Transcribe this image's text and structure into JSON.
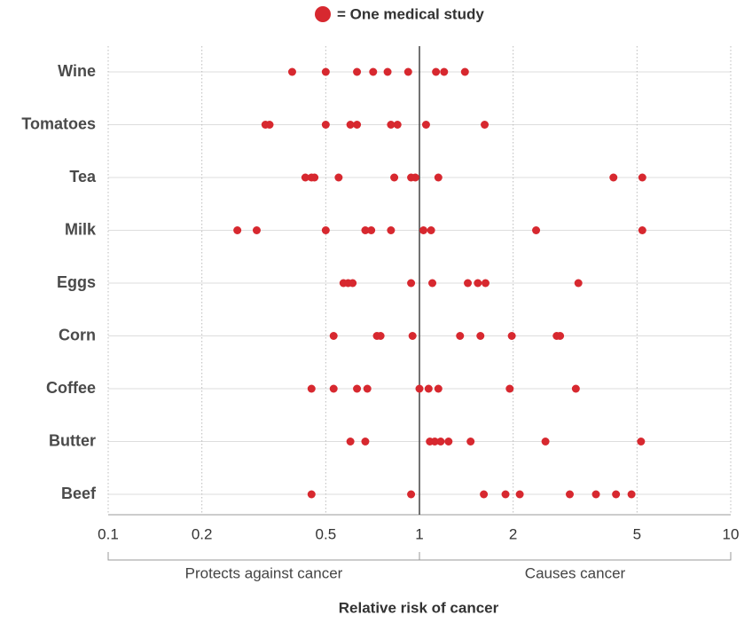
{
  "chart_data": {
    "type": "strip",
    "legend_label": "= One medical study",
    "x_label": "Relative risk of cancer",
    "left_label": "Protects against cancer",
    "right_label": "Causes cancer",
    "color": "#d7282f",
    "log_x": true,
    "grid": true,
    "reference_x": 1,
    "xlim": [
      0.1,
      10
    ],
    "xticks": [
      0.1,
      0.2,
      0.5,
      1,
      2,
      5,
      10
    ],
    "categories": [
      "Wine",
      "Tomatoes",
      "Tea",
      "Milk",
      "Eggs",
      "Corn",
      "Coffee",
      "Butter",
      "Beef"
    ],
    "values": [
      [
        0.39,
        0.5,
        0.63,
        0.71,
        0.79,
        0.92,
        1.13,
        1.2,
        1.4
      ],
      [
        0.32,
        0.33,
        0.5,
        0.6,
        0.63,
        0.81,
        0.85,
        1.05,
        1.62
      ],
      [
        0.43,
        0.45,
        0.46,
        0.55,
        0.83,
        0.94,
        0.97,
        1.15,
        4.2,
        5.2
      ],
      [
        0.26,
        0.3,
        0.5,
        0.67,
        0.7,
        0.81,
        1.03,
        1.09,
        2.37,
        5.2
      ],
      [
        0.57,
        0.59,
        0.61,
        0.94,
        1.1,
        1.43,
        1.54,
        1.63,
        3.24
      ],
      [
        0.53,
        0.73,
        0.75,
        0.95,
        1.35,
        1.57,
        1.98,
        2.76,
        2.83
      ],
      [
        0.45,
        0.53,
        0.63,
        0.68,
        1.0,
        1.07,
        1.15,
        1.95,
        3.18
      ],
      [
        0.6,
        0.67,
        1.08,
        1.12,
        1.17,
        1.24,
        1.46,
        2.54,
        5.15
      ],
      [
        0.45,
        0.94,
        1.61,
        1.89,
        2.1,
        3.04,
        3.69,
        4.28,
        4.8
      ]
    ]
  }
}
